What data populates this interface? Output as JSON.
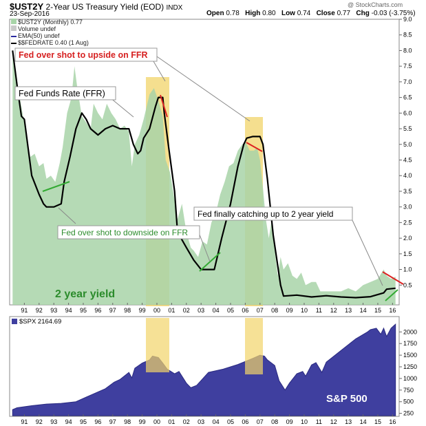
{
  "header": {
    "symbol": "$UST2Y",
    "title": "2-Year US Treasury Yield (EOD)",
    "exchange": "INDX",
    "date": "23-Sep-2016",
    "open_label": "Open",
    "open_value": "0.78",
    "high_label": "High",
    "high_value": "0.80",
    "low_label": "Low",
    "low_value": "0.74",
    "close_label": "Close",
    "close_value": "0.77",
    "chg_label": "Chg",
    "chg_value": "-0.03 (-3.75%)",
    "brand": "@ StockCharts.com"
  },
  "legend": {
    "series1": "$UST2Y (Monthly) 0.77",
    "series2": "Volume undef",
    "series3": "EMA(50) undef",
    "series4": "$$FEDRATE 0.40 (1 Aug)",
    "spx": "$SPX 2164.69"
  },
  "annotations": {
    "upside": "Fed over shot to upside on FFR",
    "ffr": "Fed Funds Rate (FFR)",
    "downside": "Fed over shot to downside on FFR",
    "catchup": "Fed finally catching up to 2 year yield",
    "yield_label": "2 year yield",
    "spx_label": "S&P 500"
  },
  "colors": {
    "yield_fill": "#a8d4a8",
    "ffr_line": "#000000",
    "spx_fill": "#3f3f9f",
    "highlight": "#f2d46a",
    "red_mark": "#dd2222",
    "green_mark": "#33aa33",
    "annot_red": "#d62020",
    "annot_green": "#2c8c2c"
  },
  "chart_data": [
    {
      "type": "area",
      "title": "$UST2Y 2-Year US Treasury Yield (EOD) with $$FEDRATE",
      "x_ticks": [
        "91",
        "92",
        "93",
        "94",
        "95",
        "96",
        "97",
        "98",
        "99",
        "00",
        "01",
        "02",
        "03",
        "04",
        "05",
        "06",
        "07",
        "08",
        "09",
        "10",
        "11",
        "12",
        "13",
        "14",
        "15",
        "16"
      ],
      "ylim": [
        0,
        9
      ],
      "y_ticks": [
        "0.5",
        "1.0",
        "1.5",
        "2.0",
        "2.5",
        "3.0",
        "3.5",
        "4.0",
        "4.5",
        "5.0",
        "5.5",
        "6.0",
        "6.5",
        "7.0",
        "7.5",
        "8.0",
        "8.5",
        "9.0"
      ],
      "series": [
        {
          "name": "$UST2Y",
          "x": [
            1990.7,
            1991.0,
            1991.3,
            1991.6,
            1991.9,
            1992.2,
            1992.5,
            1992.8,
            1993.0,
            1993.3,
            1993.6,
            1993.9,
            1994.1,
            1994.4,
            1994.7,
            1994.9,
            1995.1,
            1995.4,
            1995.7,
            1996.0,
            1996.2,
            1996.5,
            1996.8,
            1997.1,
            1997.4,
            1997.7,
            1998.0,
            1998.3,
            1998.6,
            1998.8,
            1999.0,
            1999.3,
            1999.6,
            2000.0,
            2000.3,
            2000.6,
            2000.9,
            2001.1,
            2001.4,
            2001.7,
            2001.9,
            2002.2,
            2002.5,
            2002.8,
            2003.0,
            2003.3,
            2003.6,
            2003.9,
            2004.2,
            2004.5,
            2004.8,
            2005.1,
            2005.4,
            2005.7,
            2006.0,
            2006.3,
            2006.5,
            2006.8,
            2007.1,
            2007.3,
            2007.5,
            2007.7,
            2007.9,
            2008.1,
            2008.3,
            2008.5,
            2008.7,
            2008.9,
            2009.1,
            2009.4,
            2009.7,
            2010.0,
            2010.3,
            2010.6,
            2011.0,
            2011.3,
            2011.6,
            2012.0,
            2012.5,
            2013.0,
            2013.5,
            2014.0,
            2014.5,
            2015.0,
            2015.5,
            2015.9,
            2016.1,
            2016.4,
            2016.7
          ],
          "values": [
            8.0,
            7.0,
            6.2,
            5.4,
            4.6,
            4.7,
            4.3,
            4.4,
            3.9,
            4.0,
            3.8,
            4.4,
            4.9,
            6.0,
            6.5,
            7.5,
            6.8,
            5.9,
            5.7,
            5.5,
            6.3,
            6.0,
            5.8,
            6.3,
            6.0,
            5.8,
            5.5,
            5.6,
            5.4,
            4.3,
            5.0,
            5.3,
            5.8,
            6.6,
            6.8,
            6.4,
            5.9,
            4.5,
            4.1,
            3.2,
            2.6,
            3.1,
            2.2,
            1.7,
            1.6,
            1.4,
            1.9,
            1.8,
            2.5,
            2.8,
            3.4,
            3.8,
            4.3,
            4.4,
            4.8,
            5.0,
            5.1,
            4.8,
            4.8,
            4.9,
            4.5,
            3.6,
            2.6,
            2.0,
            2.6,
            1.6,
            0.8,
            1.4,
            1.0,
            1.2,
            0.8,
            0.7,
            0.9,
            0.5,
            0.6,
            0.6,
            0.3,
            0.3,
            0.3,
            0.3,
            0.4,
            0.3,
            0.5,
            0.6,
            0.7,
            1.0,
            0.8,
            0.7,
            0.77
          ]
        },
        {
          "name": "$$FEDRATE",
          "x": [
            1990.7,
            1991.0,
            1991.3,
            1991.5,
            1992.0,
            1992.5,
            1992.8,
            1993.0,
            1993.5,
            1994.0,
            1994.2,
            1994.6,
            1995.0,
            1995.4,
            1995.7,
            1996.0,
            1996.5,
            1997.0,
            1997.5,
            1998.0,
            1998.6,
            1998.9,
            1999.2,
            1999.4,
            1999.6,
            2000.0,
            2000.4,
            2000.6,
            2000.9,
            2001.0,
            2001.3,
            2001.7,
            2001.9,
            2002.5,
            2003.0,
            2003.5,
            2004.0,
            2004.4,
            2004.6,
            2004.9,
            2005.5,
            2006.0,
            2006.4,
            2006.6,
            2007.0,
            2007.5,
            2007.7,
            2008.0,
            2008.4,
            2008.9,
            2009.1,
            2010.0,
            2011.0,
            2012.0,
            2013.0,
            2014.0,
            2015.0,
            2015.9,
            2016.1,
            2016.7
          ],
          "values": [
            8.0,
            6.9,
            5.9,
            5.8,
            4.0,
            3.4,
            3.1,
            3.0,
            3.0,
            3.1,
            3.8,
            4.6,
            5.5,
            6.0,
            5.8,
            5.5,
            5.3,
            5.5,
            5.6,
            5.5,
            5.5,
            5.0,
            4.7,
            4.8,
            5.2,
            5.5,
            6.2,
            6.5,
            6.5,
            6.0,
            4.9,
            3.5,
            2.2,
            1.7,
            1.3,
            1.0,
            1.0,
            1.0,
            1.4,
            2.0,
            3.1,
            4.3,
            5.0,
            5.2,
            5.25,
            5.25,
            5.0,
            3.9,
            2.1,
            0.5,
            0.15,
            0.18,
            0.12,
            0.16,
            0.12,
            0.1,
            0.13,
            0.25,
            0.37,
            0.4
          ]
        }
      ]
    },
    {
      "type": "area",
      "title": "$SPX 2164.69",
      "x_ticks": [
        "91",
        "92",
        "93",
        "94",
        "95",
        "96",
        "97",
        "98",
        "99",
        "00",
        "01",
        "02",
        "03",
        "04",
        "05",
        "06",
        "07",
        "08",
        "09",
        "10",
        "11",
        "12",
        "13",
        "14",
        "15",
        "16"
      ],
      "ylim": [
        200,
        2300
      ],
      "y_ticks": [
        "250",
        "500",
        "750",
        "1000",
        "1250",
        "1500",
        "1750",
        "2000"
      ],
      "series": [
        {
          "name": "$SPX",
          "x": [
            1990.7,
            1991.0,
            1992.0,
            1993.0,
            1994.0,
            1995.0,
            1996.0,
            1997.0,
            1997.6,
            1998.0,
            1998.6,
            1998.8,
            1999.0,
            1999.5,
            2000.0,
            2000.2,
            2000.6,
            2000.9,
            2001.2,
            2001.7,
            2002.0,
            2002.5,
            2002.8,
            2003.2,
            2004.0,
            2005.0,
            2006.0,
            2007.0,
            2007.5,
            2007.8,
            2008.0,
            2008.5,
            2008.8,
            2009.2,
            2009.5,
            2010.0,
            2010.4,
            2010.6,
            2011.0,
            2011.3,
            2011.7,
            2012.0,
            2013.0,
            2014.0,
            2014.8,
            2015.0,
            2015.4,
            2015.7,
            2015.9,
            2016.1,
            2016.4,
            2016.7
          ],
          "values": [
            330,
            370,
            415,
            450,
            465,
            500,
            640,
            780,
            920,
            980,
            1130,
            1010,
            1220,
            1330,
            1400,
            1480,
            1450,
            1330,
            1200,
            1100,
            1150,
            900,
            800,
            850,
            1130,
            1200,
            1300,
            1430,
            1500,
            1480,
            1400,
            1280,
            950,
            750,
            900,
            1100,
            1150,
            1050,
            1290,
            1340,
            1130,
            1350,
            1600,
            1850,
            2000,
            2050,
            2080,
            1950,
            2080,
            1900,
            2080,
            2164.69
          ]
        }
      ]
    }
  ]
}
